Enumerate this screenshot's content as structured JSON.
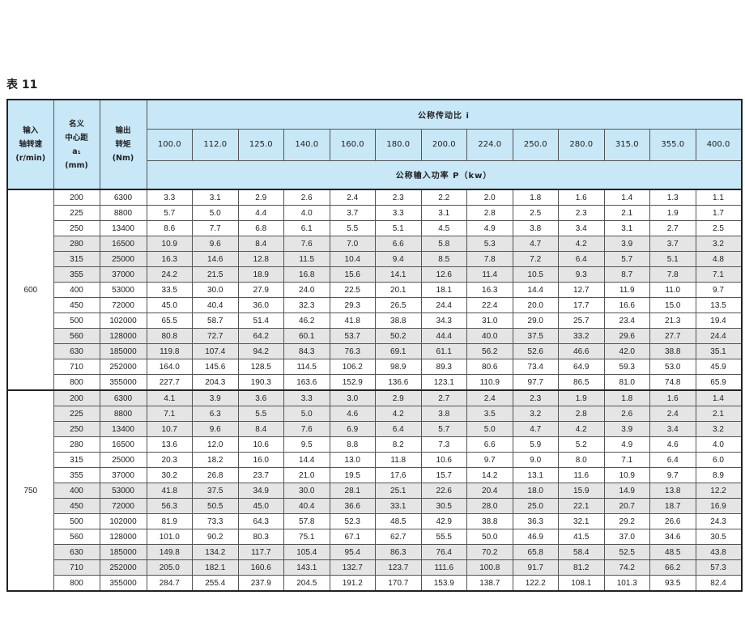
{
  "title": "表 11",
  "header": {
    "input_speed": "输入\n轴转速\n(r/min)",
    "center_distance": "名义\n中心距\na₁\n(mm)",
    "output_torque": "输出\n转矩\n(Nm)",
    "ratio_label": "公称传动比 i",
    "power_label": "公称输入功率 P（kw）",
    "ratios": [
      "100.0",
      "112.0",
      "125.0",
      "140.0",
      "160.0",
      "180.0",
      "200.0",
      "224.0",
      "250.0",
      "280.0",
      "315.0",
      "355.0",
      "400.0"
    ]
  },
  "colors": {
    "header_bg": "#c8e7f7",
    "shaded_row": "#e5e5e5"
  },
  "groups": [
    {
      "speed": "600",
      "rows": [
        {
          "a": "200",
          "t": "6300",
          "shaded": false,
          "p": [
            "3.3",
            "3.1",
            "2.9",
            "2.6",
            "2.4",
            "2.3",
            "2.2",
            "2.0",
            "1.8",
            "1.6",
            "1.4",
            "1.3",
            "1.1"
          ]
        },
        {
          "a": "225",
          "t": "8800",
          "shaded": false,
          "p": [
            "5.7",
            "5.0",
            "4.4",
            "4.0",
            "3.7",
            "3.3",
            "3.1",
            "2.8",
            "2.5",
            "2.3",
            "2.1",
            "1.9",
            "1.7"
          ]
        },
        {
          "a": "250",
          "t": "13400",
          "shaded": false,
          "p": [
            "8.6",
            "7.7",
            "6.8",
            "6.1",
            "5.5",
            "5.1",
            "4.5",
            "4.9",
            "3.8",
            "3.4",
            "3.1",
            "2.7",
            "2.5"
          ]
        },
        {
          "a": "280",
          "t": "16500",
          "shaded": true,
          "p": [
            "10.9",
            "9.6",
            "8.4",
            "7.6",
            "7.0",
            "6.6",
            "5.8",
            "5.3",
            "4.7",
            "4.2",
            "3.9",
            "3.7",
            "3.2"
          ]
        },
        {
          "a": "315",
          "t": "25000",
          "shaded": true,
          "p": [
            "16.3",
            "14.6",
            "12.8",
            "11.5",
            "10.4",
            "9.4",
            "8.5",
            "7.8",
            "7.2",
            "6.4",
            "5.7",
            "5.1",
            "4.8"
          ]
        },
        {
          "a": "355",
          "t": "37000",
          "shaded": true,
          "p": [
            "24.2",
            "21.5",
            "18.9",
            "16.8",
            "15.6",
            "14.1",
            "12.6",
            "11.4",
            "10.5",
            "9.3",
            "8.7",
            "7.8",
            "7.1"
          ]
        },
        {
          "a": "400",
          "t": "53000",
          "shaded": false,
          "p": [
            "33.5",
            "30.0",
            "27.9",
            "24.0",
            "22.5",
            "20.1",
            "18.1",
            "16.3",
            "14.4",
            "12.7",
            "11.9",
            "11.0",
            "9.7"
          ]
        },
        {
          "a": "450",
          "t": "72000",
          "shaded": false,
          "p": [
            "45.0",
            "40.4",
            "36.0",
            "32.3",
            "29.3",
            "26.5",
            "24.4",
            "22.4",
            "20.0",
            "17.7",
            "16.6",
            "15.0",
            "13.5"
          ]
        },
        {
          "a": "500",
          "t": "102000",
          "shaded": false,
          "p": [
            "65.5",
            "58.7",
            "51.4",
            "46.2",
            "41.8",
            "38.8",
            "34.3",
            "31.0",
            "29.0",
            "25.7",
            "23.4",
            "21.3",
            "19.4"
          ]
        },
        {
          "a": "560",
          "t": "128000",
          "shaded": true,
          "p": [
            "80.8",
            "72.7",
            "64.2",
            "60.1",
            "53.7",
            "50.2",
            "44.4",
            "40.0",
            "37.5",
            "33.2",
            "29.6",
            "27.7",
            "24.4"
          ]
        },
        {
          "a": "630",
          "t": "185000",
          "shaded": true,
          "p": [
            "119.8",
            "107.4",
            "94.2",
            "84.3",
            "76.3",
            "69.1",
            "61.1",
            "56.2",
            "52.6",
            "46.6",
            "42.0",
            "38.8",
            "35.1"
          ]
        },
        {
          "a": "710",
          "t": "252000",
          "shaded": false,
          "p": [
            "164.0",
            "145.6",
            "128.5",
            "114.5",
            "106.2",
            "98.9",
            "89.3",
            "80.6",
            "73.4",
            "64.9",
            "59.3",
            "53.0",
            "45.9"
          ]
        },
        {
          "a": "800",
          "t": "355000",
          "shaded": false,
          "p": [
            "227.7",
            "204.3",
            "190.3",
            "163.6",
            "152.9",
            "136.6",
            "123.1",
            "110.9",
            "97.7",
            "86.5",
            "81.0",
            "74.8",
            "65.9"
          ]
        }
      ]
    },
    {
      "speed": "750",
      "rows": [
        {
          "a": "200",
          "t": "6300",
          "shaded": true,
          "p": [
            "4.1",
            "3.9",
            "3.6",
            "3.3",
            "3.0",
            "2.9",
            "2.7",
            "2.4",
            "2.3",
            "1.9",
            "1.8",
            "1.6",
            "1.4"
          ]
        },
        {
          "a": "225",
          "t": "8800",
          "shaded": true,
          "p": [
            "7.1",
            "6.3",
            "5.5",
            "5.0",
            "4.6",
            "4.2",
            "3.8",
            "3.5",
            "3.2",
            "2.8",
            "2.6",
            "2.4",
            "2.1"
          ]
        },
        {
          "a": "250",
          "t": "13400",
          "shaded": true,
          "p": [
            "10.7",
            "9.6",
            "8.4",
            "7.6",
            "6.9",
            "6.4",
            "5.7",
            "5.0",
            "4.7",
            "4.2",
            "3.9",
            "3.4",
            "3.2"
          ]
        },
        {
          "a": "280",
          "t": "16500",
          "shaded": false,
          "p": [
            "13.6",
            "12.0",
            "10.6",
            "9.5",
            "8.8",
            "8.2",
            "7.3",
            "6.6",
            "5.9",
            "5.2",
            "4.9",
            "4.6",
            "4.0"
          ]
        },
        {
          "a": "315",
          "t": "25000",
          "shaded": false,
          "p": [
            "20.3",
            "18.2",
            "16.0",
            "14.4",
            "13.0",
            "11.8",
            "10.6",
            "9.7",
            "9.0",
            "8.0",
            "7.1",
            "6.4",
            "6.0"
          ]
        },
        {
          "a": "355",
          "t": "37000",
          "shaded": false,
          "p": [
            "30.2",
            "26.8",
            "23.7",
            "21.0",
            "19.5",
            "17.6",
            "15.7",
            "14.2",
            "13.1",
            "11.6",
            "10.9",
            "9.7",
            "8.9"
          ]
        },
        {
          "a": "400",
          "t": "53000",
          "shaded": true,
          "p": [
            "41.8",
            "37.5",
            "34.9",
            "30.0",
            "28.1",
            "25.1",
            "22.6",
            "20.4",
            "18.0",
            "15.9",
            "14.9",
            "13.8",
            "12.2"
          ]
        },
        {
          "a": "450",
          "t": "72000",
          "shaded": true,
          "p": [
            "56.3",
            "50.5",
            "45.0",
            "40.4",
            "36.6",
            "33.1",
            "30.5",
            "28.0",
            "25.0",
            "22.1",
            "20.7",
            "18.7",
            "16.9"
          ]
        },
        {
          "a": "500",
          "t": "102000",
          "shaded": false,
          "p": [
            "81.9",
            "73.3",
            "64.3",
            "57.8",
            "52.3",
            "48.5",
            "42.9",
            "38.8",
            "36.3",
            "32.1",
            "29.2",
            "26.6",
            "24.3"
          ]
        },
        {
          "a": "560",
          "t": "128000",
          "shaded": false,
          "p": [
            "101.0",
            "90.2",
            "80.3",
            "75.1",
            "67.1",
            "62.7",
            "55.5",
            "50.0",
            "46.9",
            "41.5",
            "37.0",
            "34.6",
            "30.5"
          ]
        },
        {
          "a": "630",
          "t": "185000",
          "shaded": true,
          "p": [
            "149.8",
            "134.2",
            "117.7",
            "105.4",
            "95.4",
            "86.3",
            "76.4",
            "70.2",
            "65.8",
            "58.4",
            "52.5",
            "48.5",
            "43.8"
          ]
        },
        {
          "a": "710",
          "t": "252000",
          "shaded": true,
          "p": [
            "205.0",
            "182.1",
            "160.6",
            "143.1",
            "132.7",
            "123.7",
            "111.6",
            "100.8",
            "91.7",
            "81.2",
            "74.2",
            "66.2",
            "57.3"
          ]
        },
        {
          "a": "800",
          "t": "355000",
          "shaded": false,
          "p": [
            "284.7",
            "255.4",
            "237.9",
            "204.5",
            "191.2",
            "170.7",
            "153.9",
            "138.7",
            "122.2",
            "108.1",
            "101.3",
            "93.5",
            "82.4"
          ]
        }
      ]
    }
  ]
}
